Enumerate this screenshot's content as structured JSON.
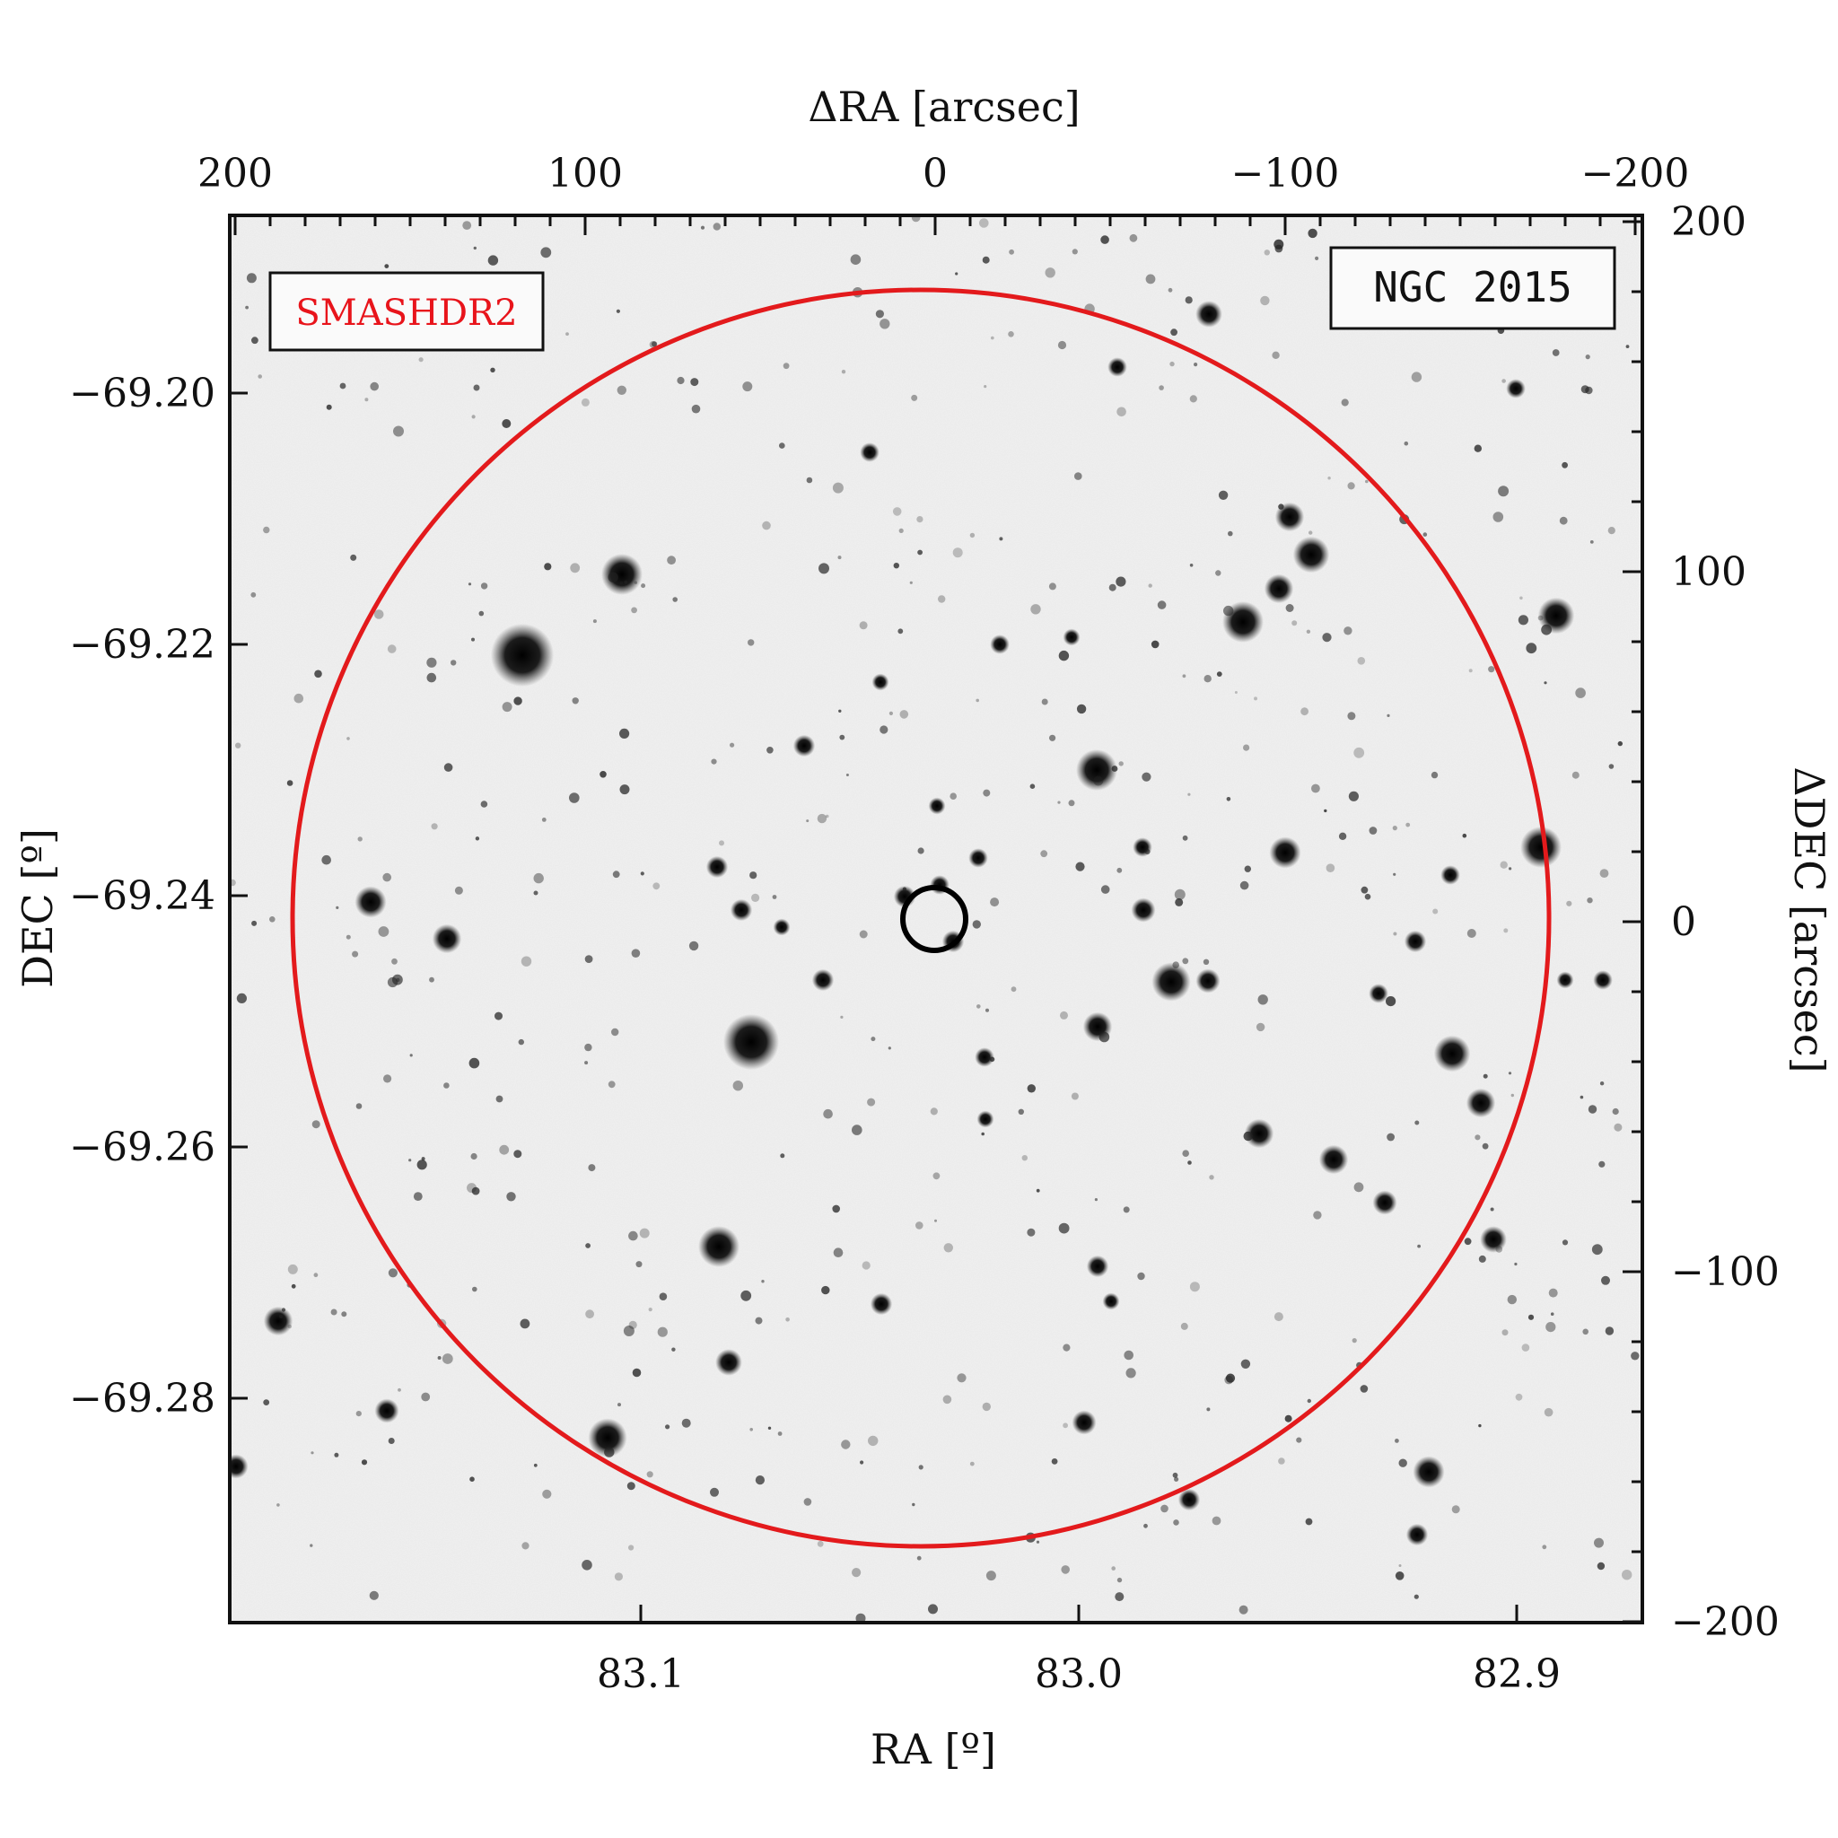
{
  "image": {
    "kind": "astronomical field image (inverted greyscale) with coordinate axes",
    "target_label": "NGC 2015",
    "survey_label": "SMASHDR2",
    "survey_label_color": "#e8141b",
    "outer_circle_color": "#e31a1c",
    "inner_circle_color": "#000000"
  },
  "axes": {
    "top": {
      "title": "ΔRA [arcsec]",
      "ticks": [
        {
          "value": 200,
          "label": "200"
        },
        {
          "value": 100,
          "label": "100"
        },
        {
          "value": 0,
          "label": "0"
        },
        {
          "value": -100,
          "label": "−100"
        },
        {
          "value": -200,
          "label": "−200"
        }
      ]
    },
    "bottom": {
      "title": "RA [º]",
      "ticks": [
        {
          "value": 83.1,
          "label": "83.1"
        },
        {
          "value": 83.0,
          "label": "83.0"
        },
        {
          "value": 82.9,
          "label": "82.9"
        }
      ]
    },
    "left": {
      "title": "DEC [º]",
      "ticks": [
        {
          "value": -69.2,
          "label": "−69.20"
        },
        {
          "value": -69.22,
          "label": "−69.22"
        },
        {
          "value": -69.24,
          "label": "−69.24"
        },
        {
          "value": -69.26,
          "label": "−69.26"
        },
        {
          "value": -69.28,
          "label": "−69.28"
        }
      ]
    },
    "right": {
      "title": "ΔDEC [arcsec]",
      "ticks": [
        {
          "value": 200,
          "label": "200"
        },
        {
          "value": 100,
          "label": "100"
        },
        {
          "value": 0,
          "label": "0"
        },
        {
          "value": -100,
          "label": "−100"
        },
        {
          "value": -200,
          "label": "−200"
        }
      ]
    }
  }
}
